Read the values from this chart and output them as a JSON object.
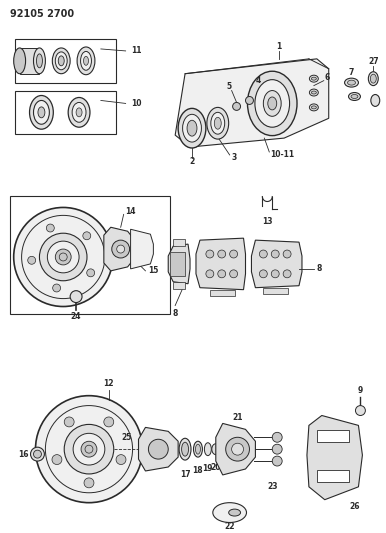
{
  "title": "92105 2700",
  "bg_color": "#ffffff",
  "fig_width": 3.86,
  "fig_height": 5.33,
  "dpi": 100,
  "lc": "#2a2a2a",
  "gray1": "#c8c8c8",
  "gray2": "#e0e0e0",
  "gray3": "#f0f0f0"
}
